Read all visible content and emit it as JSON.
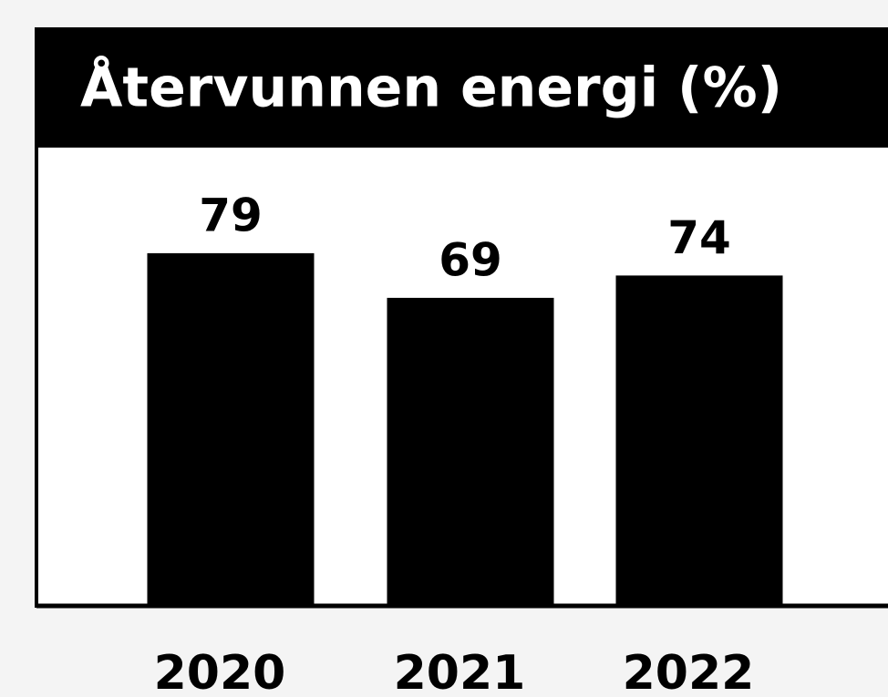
{
  "chart_data": {
    "type": "bar",
    "title": "Återvunnen energi (%)",
    "categories": [
      "2020",
      "2021",
      "2022"
    ],
    "values": [
      79,
      69,
      74
    ],
    "color": "#000000"
  }
}
